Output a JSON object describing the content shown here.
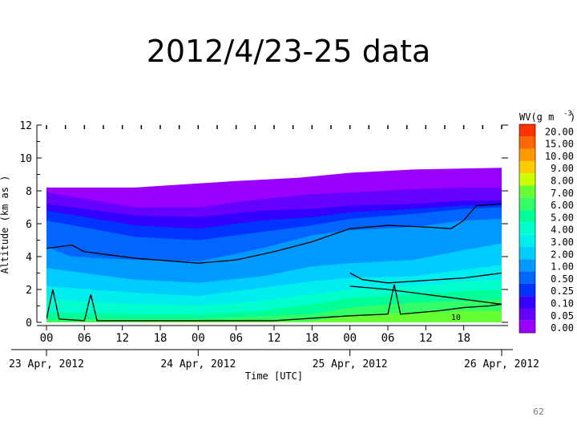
{
  "slide": {
    "title": "2012/4/23-25 data",
    "page_number": "62"
  },
  "chart_data": {
    "type": "heatmap",
    "title": "",
    "xlabel": "Time [UTC]",
    "ylabel": "Altitude (km as )",
    "x_start": "2012-04-23T00:00",
    "x_end": "2012-04-26T00:00",
    "ylim": [
      0,
      12
    ],
    "y_ticks": [
      0,
      2,
      4,
      6,
      8,
      10,
      12
    ],
    "x_tick_labels": [
      "00",
      "06",
      "12",
      "18",
      "00",
      "06",
      "12",
      "18",
      "00",
      "06",
      "12",
      "18"
    ],
    "x_tick_hours": [
      0,
      6,
      12,
      18,
      24,
      30,
      36,
      42,
      48,
      54,
      60,
      66
    ],
    "date_labels": [
      {
        "label": "23 Apr, 2012",
        "hour": 0
      },
      {
        "label": "24 Apr, 2012",
        "hour": 24
      },
      {
        "label": "25 Apr, 2012",
        "hour": 48
      },
      {
        "label": "26 Apr, 2012",
        "hour": 72
      }
    ],
    "colorbar": {
      "title": "WV(g m",
      "title_exp": "-3",
      "title_end": ")",
      "levels": [
        {
          "label": "20.00",
          "color": "#ff3300"
        },
        {
          "label": "15.00",
          "color": "#ff6600"
        },
        {
          "label": "10.00",
          "color": "#ff9900"
        },
        {
          "label": "9.00",
          "color": "#ffcc00"
        },
        {
          "label": "8.00",
          "color": "#ccff00"
        },
        {
          "label": "7.00",
          "color": "#66ff33"
        },
        {
          "label": "6.00",
          "color": "#33ff66"
        },
        {
          "label": "5.00",
          "color": "#00ff99"
        },
        {
          "label": "4.00",
          "color": "#00ffcc"
        },
        {
          "label": "3.00",
          "color": "#00eeee"
        },
        {
          "label": "2.00",
          "color": "#00ccff"
        },
        {
          "label": "1.00",
          "color": "#0099ff"
        },
        {
          "label": "0.50",
          "color": "#0066ff"
        },
        {
          "label": "0.25",
          "color": "#0033ff"
        },
        {
          "label": "0.10",
          "color": "#3300ff"
        },
        {
          "label": "0.05",
          "color": "#6600ff"
        },
        {
          "label": "0.00",
          "color": "#9900ff"
        }
      ]
    },
    "bands": [
      {
        "level": "0.00",
        "top": [
          [
            0,
            8.2
          ],
          [
            14,
            8.2
          ],
          [
            30,
            8.6
          ],
          [
            40,
            8.8
          ],
          [
            48,
            9.1
          ],
          [
            58,
            9.3
          ],
          [
            72,
            9.4
          ]
        ]
      },
      {
        "level": "0.05",
        "top": [
          [
            0,
            7.9
          ],
          [
            14,
            7.0
          ],
          [
            24,
            7.0
          ],
          [
            34,
            7.5
          ],
          [
            42,
            7.8
          ],
          [
            48,
            7.9
          ],
          [
            58,
            8.1
          ],
          [
            66,
            8.2
          ],
          [
            72,
            8.2
          ]
        ]
      },
      {
        "level": "0.10",
        "top": [
          [
            0,
            7.2
          ],
          [
            14,
            6.5
          ],
          [
            24,
            6.4
          ],
          [
            34,
            6.8
          ],
          [
            42,
            6.9
          ],
          [
            48,
            7.1
          ],
          [
            58,
            7.2
          ],
          [
            66,
            7.4
          ],
          [
            72,
            7.4
          ]
        ]
      },
      {
        "level": "0.25",
        "top": [
          [
            0,
            6.8
          ],
          [
            14,
            5.9
          ],
          [
            24,
            5.7
          ],
          [
            34,
            6.2
          ],
          [
            42,
            6.4
          ],
          [
            48,
            6.7
          ],
          [
            58,
            6.9
          ],
          [
            66,
            7.1
          ],
          [
            72,
            7.2
          ]
        ]
      },
      {
        "level": "0.50",
        "top": [
          [
            0,
            6.2
          ],
          [
            14,
            5.2
          ],
          [
            24,
            5.0
          ],
          [
            34,
            5.5
          ],
          [
            42,
            5.9
          ],
          [
            48,
            6.3
          ],
          [
            58,
            6.6
          ],
          [
            66,
            6.9
          ],
          [
            72,
            7.0
          ]
        ]
      },
      {
        "level": "1.00",
        "top": [
          [
            0,
            4.6
          ],
          [
            4,
            4.0
          ],
          [
            14,
            3.8
          ],
          [
            24,
            3.7
          ],
          [
            34,
            4.5
          ],
          [
            42,
            5.3
          ],
          [
            48,
            5.6
          ],
          [
            58,
            5.8
          ],
          [
            66,
            6.2
          ],
          [
            72,
            6.3
          ]
        ]
      },
      {
        "level": "2.00",
        "top": [
          [
            0,
            3.3
          ],
          [
            14,
            2.6
          ],
          [
            24,
            2.4
          ],
          [
            34,
            2.8
          ],
          [
            42,
            3.4
          ],
          [
            48,
            3.6
          ],
          [
            58,
            3.8
          ],
          [
            66,
            4.4
          ],
          [
            72,
            4.8
          ]
        ]
      },
      {
        "level": "3.00",
        "top": [
          [
            0,
            2.2
          ],
          [
            14,
            1.8
          ],
          [
            24,
            1.6
          ],
          [
            34,
            2.1
          ],
          [
            42,
            2.5
          ],
          [
            48,
            2.7
          ],
          [
            58,
            2.8
          ],
          [
            66,
            3.2
          ],
          [
            72,
            3.5
          ]
        ]
      },
      {
        "level": "4.00",
        "top": [
          [
            0,
            1.4
          ],
          [
            14,
            1.1
          ],
          [
            24,
            1.0
          ],
          [
            34,
            1.3
          ],
          [
            42,
            1.7
          ],
          [
            48,
            2.0
          ],
          [
            58,
            2.2
          ],
          [
            66,
            2.5
          ],
          [
            72,
            2.6
          ]
        ]
      },
      {
        "level": "5.00",
        "top": [
          [
            0,
            0.6
          ],
          [
            14,
            0.5
          ],
          [
            24,
            0.5
          ],
          [
            34,
            0.7
          ],
          [
            42,
            1.1
          ],
          [
            48,
            1.5
          ],
          [
            58,
            1.7
          ],
          [
            66,
            1.9
          ],
          [
            72,
            2.0
          ]
        ]
      },
      {
        "level": "6.00",
        "top": [
          [
            0,
            0.2
          ],
          [
            24,
            0.2
          ],
          [
            42,
            0.5
          ],
          [
            48,
            0.9
          ],
          [
            58,
            1.2
          ],
          [
            66,
            1.3
          ],
          [
            72,
            1.4
          ]
        ]
      },
      {
        "level": "7.00",
        "top": [
          [
            0,
            0.0
          ],
          [
            42,
            0.1
          ],
          [
            48,
            0.4
          ],
          [
            58,
            0.6
          ],
          [
            66,
            0.7
          ],
          [
            72,
            0.7
          ]
        ]
      }
    ],
    "contours": [
      {
        "label": "",
        "points": [
          [
            0,
            4.5
          ],
          [
            4,
            4.7
          ],
          [
            6,
            4.3
          ],
          [
            10,
            4.1
          ],
          [
            14,
            3.9
          ],
          [
            24,
            3.6
          ],
          [
            30,
            3.8
          ],
          [
            36,
            4.3
          ],
          [
            42,
            4.9
          ],
          [
            48,
            5.7
          ],
          [
            54,
            5.9
          ],
          [
            60,
            5.8
          ],
          [
            64,
            5.7
          ],
          [
            66,
            6.2
          ],
          [
            68,
            7.1
          ],
          [
            72,
            7.2
          ]
        ]
      },
      {
        "label": "",
        "points": [
          [
            48,
            3.0
          ],
          [
            50,
            2.6
          ],
          [
            54,
            2.4
          ],
          [
            58,
            2.5
          ],
          [
            62,
            2.6
          ],
          [
            66,
            2.7
          ],
          [
            70,
            2.9
          ],
          [
            72,
            3.0
          ]
        ]
      },
      {
        "label": "",
        "points": [
          [
            48,
            2.2
          ],
          [
            54,
            2.0
          ],
          [
            58,
            1.8
          ],
          [
            62,
            1.6
          ],
          [
            66,
            1.4
          ],
          [
            70,
            1.2
          ],
          [
            72,
            1.1
          ]
        ]
      },
      {
        "label": "",
        "points": [
          [
            0,
            0.2
          ],
          [
            1,
            2.0
          ],
          [
            2,
            0.2
          ],
          [
            6,
            0.1
          ],
          [
            7,
            1.7
          ],
          [
            8,
            0.1
          ],
          [
            24,
            0.1
          ],
          [
            36,
            0.1
          ],
          [
            48,
            0.4
          ],
          [
            54,
            0.5
          ],
          [
            55,
            2.3
          ],
          [
            56,
            0.5
          ],
          [
            62,
            0.7
          ],
          [
            66,
            0.9
          ],
          [
            70,
            1.0
          ],
          [
            72,
            1.1
          ]
        ]
      }
    ],
    "annotations": [
      {
        "text": "10",
        "x": 64,
        "y": 0.05
      }
    ]
  }
}
